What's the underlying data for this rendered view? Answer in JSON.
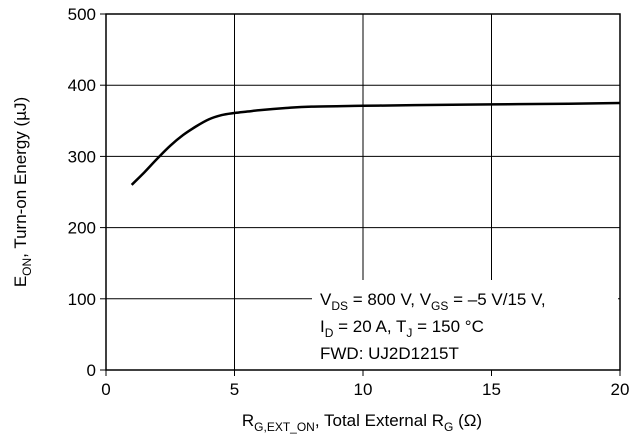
{
  "chart_data": {
    "type": "line",
    "xlim": [
      0,
      20
    ],
    "ylim": [
      0,
      500
    ],
    "x_ticks": [
      "0",
      "5",
      "10",
      "15",
      "20"
    ],
    "y_ticks": [
      "0",
      "100",
      "200",
      "300",
      "400",
      "500"
    ],
    "grid": true,
    "xlabel": {
      "main": "R",
      "sub": "G,EXT_ON",
      "rest": ", Total External R",
      "sub2": "G",
      "tail": " (Ω)"
    },
    "ylabel": {
      "main": "E",
      "sub": "ON",
      "rest": ", Turn-on Energy (µJ)"
    },
    "annotation": {
      "line1": {
        "a": "V",
        "a_sub": "DS",
        "b": " = 800 V, V",
        "b_sub": "GS",
        "c": " = –5 V/15 V,"
      },
      "line2": {
        "a": "I",
        "a_sub": "D",
        "b": " = 20 A, T",
        "b_sub": "J",
        "c": " = 150 °C"
      },
      "line3": "FWD: UJ2D1215T"
    },
    "series": [
      {
        "color": "#000000",
        "x": [
          1,
          1.5,
          2,
          2.5,
          3,
          3.5,
          4,
          4.5,
          5,
          5.5,
          6,
          7,
          8,
          10,
          12,
          15,
          18,
          20
        ],
        "y": [
          260,
          278,
          297,
          315,
          330,
          342,
          352,
          358,
          361,
          363,
          365,
          368,
          370,
          371,
          372,
          373,
          374,
          375
        ]
      }
    ]
  }
}
